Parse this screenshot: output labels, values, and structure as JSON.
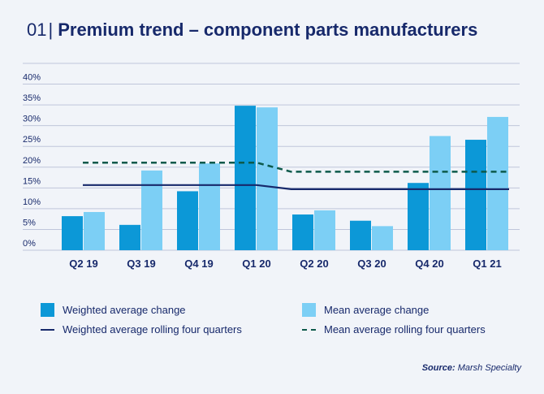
{
  "header": {
    "number": "01",
    "title": "Premium trend – component parts manufacturers"
  },
  "colors": {
    "weighted_bar": "#0c98d7",
    "mean_bar": "#7ccff5",
    "weighted_line": "#17296b",
    "mean_line": "#0d5a4b",
    "grid": "#bfc6da",
    "text": "#17296b"
  },
  "chart_data": {
    "type": "bar",
    "title": "Premium trend – component parts manufacturers",
    "categories": [
      "Q2 19",
      "Q3 19",
      "Q4 19",
      "Q1 20",
      "Q2 20",
      "Q3 20",
      "Q4 20",
      "Q1 21"
    ],
    "series": [
      {
        "name": "Weighted average change",
        "kind": "bar",
        "values": [
          8.2,
          6.1,
          14.2,
          34.8,
          8.6,
          7.1,
          16.2,
          26.6
        ]
      },
      {
        "name": "Mean average change",
        "kind": "bar",
        "values": [
          9.2,
          19.2,
          20.9,
          34.4,
          9.6,
          5.8,
          27.5,
          32.1
        ]
      },
      {
        "name": "Weighted average rolling four quarters",
        "kind": "line",
        "dash": "solid",
        "values": [
          15.7,
          15.7,
          15.7,
          15.7,
          14.7,
          14.7,
          14.7,
          14.7
        ]
      },
      {
        "name": "Mean average rolling four quarters",
        "kind": "dashed-line",
        "dash": "dashed",
        "values": [
          21.1,
          21.1,
          21.1,
          21.1,
          18.9,
          18.9,
          18.9,
          18.9
        ]
      }
    ],
    "y_ticks": [
      "0%",
      "5%",
      "10%",
      "15%",
      "20%",
      "25%",
      "30%",
      "35%",
      "40%"
    ],
    "ylim": [
      0,
      45
    ],
    "xlabel": "",
    "ylabel": "",
    "grid": true,
    "legend_position": "bottom"
  },
  "legend": [
    {
      "label": "Weighted average change",
      "kind": "box"
    },
    {
      "label": "Mean average change",
      "kind": "box"
    },
    {
      "label": "Weighted average rolling four quarters",
      "kind": "line"
    },
    {
      "label": "Mean average rolling four quarters",
      "kind": "dashed-line"
    }
  ],
  "source": {
    "prefix": "Source:",
    "text": "Marsh Specialty"
  }
}
